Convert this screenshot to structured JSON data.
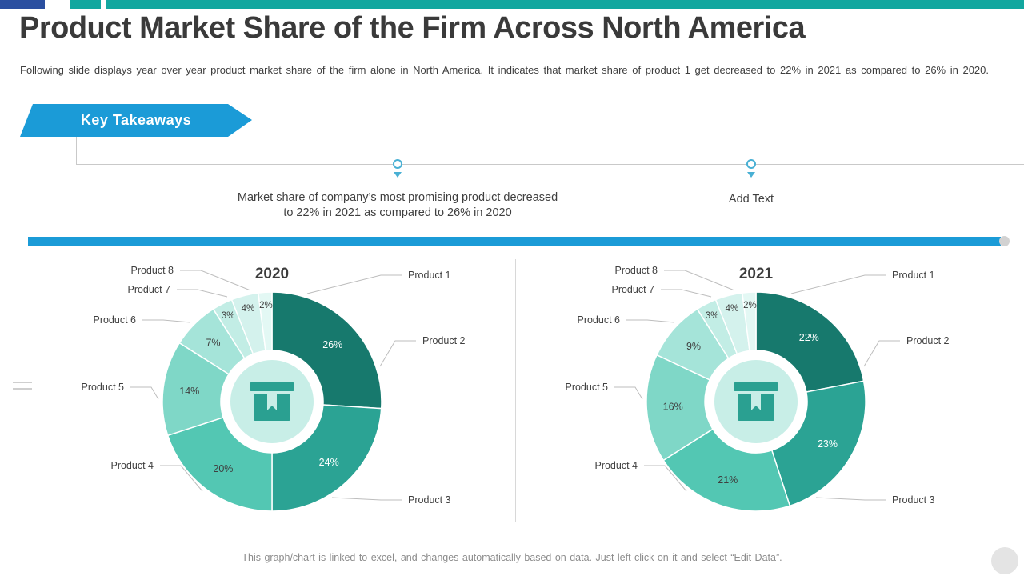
{
  "slide": {
    "title": "Product Market Share of the Firm Across North America",
    "subtitle": "Following slide displays year over year product market share of the firm alone in North America. It indicates that market share of product 1 get decreased to 22% in 2021 as compared to 26% in 2020.",
    "footer_note": "This graph/chart is linked to excel, and changes automatically based on data. Just left click on it and select “Edit Data”."
  },
  "key_takeaways": {
    "label": "Key Takeaways"
  },
  "timeline": {
    "items": [
      {
        "text": "Market share of company’s most promising product decreased to 22% in 2021 as compared to 26% in 2020"
      },
      {
        "text": "Add Text"
      }
    ]
  },
  "colors": {
    "accent_blue": "#1b9bd7",
    "top_navy": "#2b4fa0",
    "top_teal": "#12a79f",
    "timeline_marker": "#49b0d4",
    "center_mint": "#c8eee7",
    "icon_teal": "#2aa091",
    "text_dark": "#3f3f3f"
  },
  "icons": {
    "center": "package-box-icon",
    "timeline_marker": "circle-marker-icon",
    "timeline_pointer": "chevron-down-icon"
  },
  "chart_data": [
    {
      "type": "pie",
      "subtype": "donut",
      "title": "2020",
      "categories": [
        "Product 1",
        "Product 2",
        "Product 3",
        "Product 4",
        "Product 5",
        "Product 6",
        "Product 7",
        "Product 8"
      ],
      "values": [
        26,
        24,
        20,
        14,
        7,
        3,
        4,
        2
      ],
      "unit": "%",
      "colors": [
        "#17796d",
        "#2ba394",
        "#53c7b3",
        "#7fd7c7",
        "#a5e4d9",
        "#c2ede5",
        "#d4f2ed",
        "#e3f8f4"
      ],
      "legend": "none",
      "data_labels": "percent, inside slices, outside for small slices"
    },
    {
      "type": "pie",
      "subtype": "donut",
      "title": "2021",
      "categories": [
        "Product 1",
        "Product 2",
        "Product 3",
        "Product 4",
        "Product 5",
        "Product 6",
        "Product 7",
        "Product 8"
      ],
      "values": [
        22,
        23,
        21,
        16,
        9,
        3,
        4,
        2
      ],
      "unit": "%",
      "colors": [
        "#17796d",
        "#2ba394",
        "#53c7b3",
        "#7fd7c7",
        "#a5e4d9",
        "#c2ede5",
        "#d4f2ed",
        "#e3f8f4"
      ],
      "legend": "none",
      "data_labels": "percent, inside slices, outside for small slices"
    }
  ]
}
